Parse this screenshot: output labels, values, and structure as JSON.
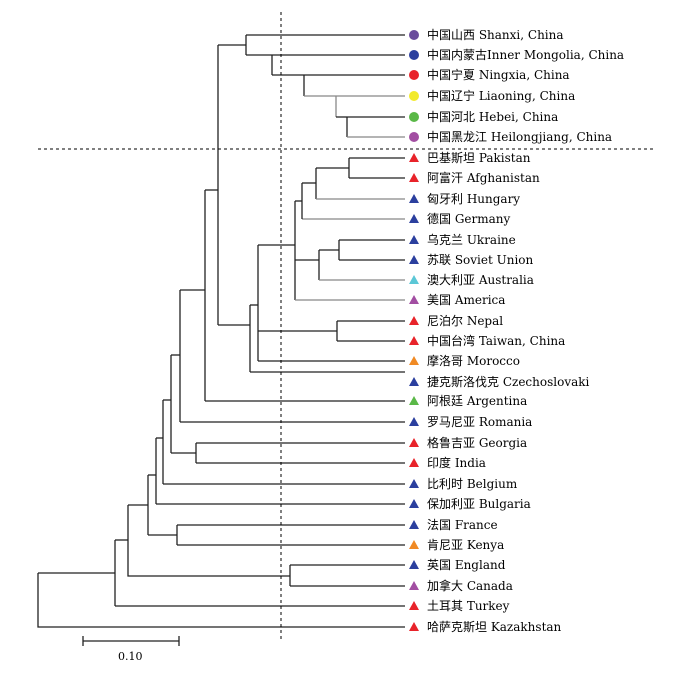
{
  "colors": {
    "purple": "#6a4c9c",
    "blue": "#2b3f9e",
    "red": "#e8232a",
    "yellow": "#f2ea2b",
    "green": "#5ab847",
    "magenta": "#a24ea2",
    "cyan": "#5bc7d6",
    "orange": "#f08a24"
  },
  "leaves": [
    {
      "label": "中国山西 Shanxi, China",
      "marker": "circle",
      "color": "#6a4c9c"
    },
    {
      "label": "中国内蒙古Inner Mongolia, China",
      "marker": "circle",
      "color": "#2b3f9e"
    },
    {
      "label": "中国宁夏 Ningxia, China",
      "marker": "circle",
      "color": "#e8232a"
    },
    {
      "label": "中国辽宁 Liaoning, China",
      "marker": "circle",
      "color": "#f2ea2b"
    },
    {
      "label": "中国河北 Hebei, China",
      "marker": "circle",
      "color": "#5ab847"
    },
    {
      "label": "中国黑龙江 Heilongjiang, China",
      "marker": "circle",
      "color": "#a24ea2"
    },
    {
      "label": "巴基斯坦 Pakistan",
      "marker": "triangle",
      "color": "#e8232a"
    },
    {
      "label": "阿富汗 Afghanistan",
      "marker": "triangle",
      "color": "#e8232a"
    },
    {
      "label": "匈牙利 Hungary",
      "marker": "triangle",
      "color": "#2b3f9e"
    },
    {
      "label": "德国 Germany",
      "marker": "triangle",
      "color": "#2b3f9e"
    },
    {
      "label": "乌克兰 Ukraine",
      "marker": "triangle",
      "color": "#2b3f9e"
    },
    {
      "label": "苏联 Soviet Union",
      "marker": "triangle",
      "color": "#2b3f9e"
    },
    {
      "label": "澳大利亚 Australia",
      "marker": "triangle",
      "color": "#5bc7d6"
    },
    {
      "label": "美国 America",
      "marker": "triangle",
      "color": "#a24ea2"
    },
    {
      "label": "尼泊尔 Nepal",
      "marker": "triangle",
      "color": "#e8232a"
    },
    {
      "label": "中国台湾  Taiwan, China",
      "marker": "triangle",
      "color": "#e8232a"
    },
    {
      "label": "摩洛哥 Morocco",
      "marker": "triangle",
      "color": "#f08a24"
    },
    {
      "label": "捷克斯洛伐克 Czechoslovaki",
      "marker": "triangle",
      "color": "#2b3f9e"
    },
    {
      "label": "阿根廷 Argentina",
      "marker": "triangle",
      "color": "#5ab847"
    },
    {
      "label": "罗马尼亚 Romania",
      "marker": "triangle",
      "color": "#2b3f9e"
    },
    {
      "label": "格鲁吉亚 Georgia",
      "marker": "triangle",
      "color": "#e8232a"
    },
    {
      "label": "印度 India",
      "marker": "triangle",
      "color": "#e8232a"
    },
    {
      "label": "比利时 Belgium",
      "marker": "triangle",
      "color": "#2b3f9e"
    },
    {
      "label": "保加利亚 Bulgaria",
      "marker": "triangle",
      "color": "#2b3f9e"
    },
    {
      "label": "法国  France",
      "marker": "triangle",
      "color": "#2b3f9e"
    },
    {
      "label": "肯尼亚 Kenya",
      "marker": "triangle",
      "color": "#f08a24"
    },
    {
      "label": "英国 England",
      "marker": "triangle",
      "color": "#2b3f9e"
    },
    {
      "label": "加拿大 Canada",
      "marker": "triangle",
      "color": "#a24ea2"
    },
    {
      "label": "土耳其 Turkey",
      "marker": "triangle",
      "color": "#e8232a"
    },
    {
      "label": "哈萨克斯坦 Kazakhstan",
      "marker": "triangle",
      "color": "#e8232a"
    }
  ],
  "scale_bar": {
    "label": "0.10"
  }
}
